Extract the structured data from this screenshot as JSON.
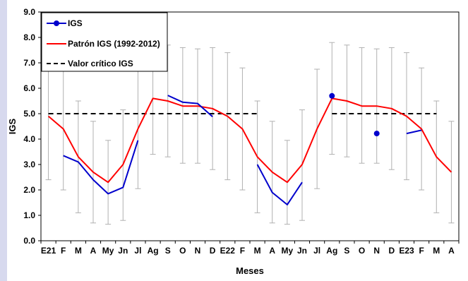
{
  "chart_data": {
    "type": "line",
    "xlabel": "Meses",
    "ylabel": "IGS",
    "ylim": [
      0,
      9
    ],
    "yticks": [
      "0.0",
      "1.0",
      "2.0",
      "3.0",
      "4.0",
      "5.0",
      "6.0",
      "7.0",
      "8.0",
      "9.0"
    ],
    "categories": [
      "E21",
      "F",
      "M",
      "A",
      "My",
      "Jn",
      "Jl",
      "Ag",
      "S",
      "O",
      "N",
      "D",
      "E22",
      "F",
      "M",
      "A",
      "My",
      "Jn",
      "Jl",
      "Ag",
      "S",
      "O",
      "N",
      "D",
      "E23",
      "F",
      "M",
      "A"
    ],
    "legend_position": "top-left",
    "series": [
      {
        "name": "IGS",
        "color": "#0000cc",
        "values": [
          null,
          3.35,
          3.1,
          2.4,
          1.85,
          2.1,
          3.95,
          null,
          5.72,
          5.45,
          5.4,
          4.88,
          null,
          null,
          3.0,
          1.9,
          1.42,
          2.3,
          null,
          5.7,
          null,
          null,
          4.22,
          null,
          4.22,
          4.35,
          null,
          null
        ]
      },
      {
        "name": "Patrón IGS (1992-2012)",
        "color": "#ff0000",
        "values": [
          4.9,
          4.4,
          3.3,
          2.7,
          2.3,
          3.0,
          4.4,
          5.6,
          5.5,
          5.3,
          5.3,
          5.2,
          4.9,
          4.4,
          3.3,
          2.7,
          2.3,
          3.0,
          4.4,
          5.6,
          5.5,
          5.3,
          5.3,
          5.2,
          4.9,
          4.4,
          3.3,
          2.7
        ]
      },
      {
        "name": "Valor crítico IGS",
        "color": "#000000",
        "dashed": true,
        "values": [
          5,
          5,
          5,
          5,
          5,
          5,
          5,
          5,
          5,
          5,
          5,
          5,
          5,
          5,
          5,
          null,
          null,
          null,
          null,
          5,
          5,
          5,
          5,
          5,
          5,
          5,
          5,
          null
        ]
      }
    ],
    "error_bars": {
      "color": "#b0b0b0",
      "ranges": [
        [
          2.4,
          7.4
        ],
        [
          2.0,
          6.8
        ],
        [
          1.1,
          5.5
        ],
        [
          0.7,
          4.7
        ],
        [
          0.65,
          3.95
        ],
        [
          0.8,
          5.15
        ],
        [
          2.05,
          6.75
        ],
        [
          3.4,
          7.8
        ],
        [
          3.3,
          7.7
        ],
        [
          3.05,
          7.6
        ],
        [
          3.05,
          7.55
        ],
        [
          2.8,
          7.6
        ],
        [
          2.4,
          7.4
        ],
        [
          2.0,
          6.8
        ],
        [
          1.1,
          5.5
        ],
        [
          0.7,
          4.7
        ],
        [
          0.65,
          3.95
        ],
        [
          0.8,
          5.15
        ],
        [
          2.05,
          6.75
        ],
        [
          3.4,
          7.8
        ],
        [
          3.3,
          7.7
        ],
        [
          3.05,
          7.6
        ],
        [
          3.05,
          7.55
        ],
        [
          2.8,
          7.6
        ],
        [
          2.4,
          7.4
        ],
        [
          2.0,
          6.8
        ],
        [
          1.1,
          5.5
        ],
        [
          0.7,
          4.7
        ]
      ]
    }
  }
}
